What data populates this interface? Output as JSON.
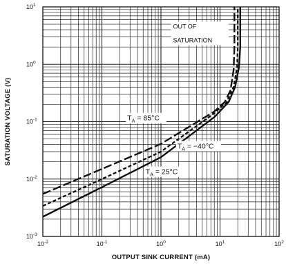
{
  "chart_data": {
    "type": "line",
    "title": "",
    "xlabel": "OUTPUT SINK CURRENT (mA)",
    "ylabel": "SATURATION VOLTAGE (V)",
    "x_scale": "log",
    "y_scale": "log",
    "xlim": [
      0.01,
      100
    ],
    "ylim": [
      0.001,
      10
    ],
    "grid": true,
    "x_ticks": [
      {
        "value": 0.01,
        "base": "10",
        "exp": "-2"
      },
      {
        "value": 0.1,
        "base": "10",
        "exp": "-1"
      },
      {
        "value": 1,
        "base": "10",
        "exp": "0"
      },
      {
        "value": 10,
        "base": "10",
        "exp": "1"
      },
      {
        "value": 100,
        "base": "10",
        "exp": "2"
      }
    ],
    "y_ticks": [
      {
        "value": 0.001,
        "base": "10",
        "exp": "-3"
      },
      {
        "value": 0.01,
        "base": "10",
        "exp": "-2"
      },
      {
        "value": 0.1,
        "base": "10",
        "exp": "-1"
      },
      {
        "value": 1,
        "base": "10",
        "exp": "0"
      },
      {
        "value": 10,
        "base": "10",
        "exp": "1"
      }
    ],
    "series": [
      {
        "label_text": "T_A = 85°C",
        "style": "long-dash",
        "x": [
          0.01,
          0.1,
          1,
          8,
          12,
          15,
          17,
          17.5,
          17.5
        ],
        "y": [
          0.0055,
          0.015,
          0.041,
          0.15,
          0.22,
          0.35,
          0.8,
          2,
          10
        ]
      },
      {
        "label_text": "T_A = −40°C",
        "style": "short-dash",
        "x": [
          0.01,
          0.1,
          1,
          8,
          13,
          17,
          19.5,
          20,
          20
        ],
        "y": [
          0.0034,
          0.01,
          0.03,
          0.14,
          0.22,
          0.4,
          0.9,
          2,
          10
        ]
      },
      {
        "label_text": "T_A = 25°C",
        "style": "solid",
        "x": [
          0.01,
          0.1,
          1,
          8,
          14,
          18,
          21,
          22,
          22
        ],
        "y": [
          0.0022,
          0.0072,
          0.024,
          0.12,
          0.22,
          0.4,
          0.9,
          2,
          10
        ]
      }
    ],
    "annotations": [
      {
        "text_line1": "OUT OF",
        "text_line2": "SATURATION"
      }
    ]
  }
}
